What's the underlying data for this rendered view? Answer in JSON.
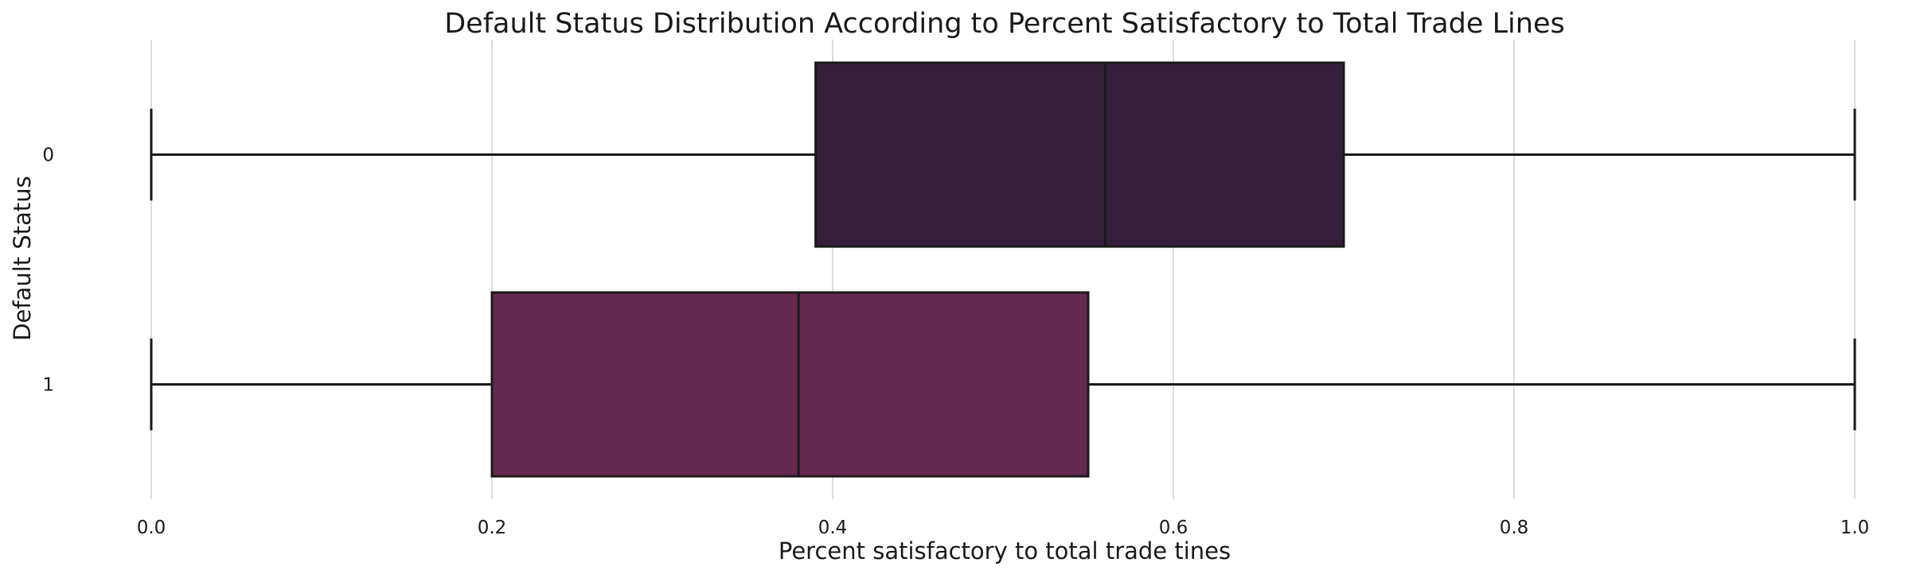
{
  "chart_data": {
    "type": "boxplot",
    "orientation": "horizontal",
    "title": "Default Status Distribution According to Percent Satisfactory to Total Trade Lines",
    "xlabel": "Percent satisfactory to total trade tines",
    "ylabel": "Default Status",
    "xlim": [
      0.0,
      1.0
    ],
    "xticks": [
      "0.0",
      "0.2",
      "0.4",
      "0.6",
      "0.8",
      "1.0"
    ],
    "grid": "vertical",
    "categories": [
      "0",
      "1"
    ],
    "boxes": [
      {
        "category": "0",
        "whisker_low": 0.0,
        "q1": 0.39,
        "median": 0.56,
        "q3": 0.7,
        "whisker_high": 1.0,
        "color": "#351e3a"
      },
      {
        "category": "1",
        "whisker_low": 0.0,
        "q1": 0.2,
        "median": 0.38,
        "q3": 0.55,
        "whisker_high": 1.0,
        "color": "#652950"
      }
    ]
  }
}
